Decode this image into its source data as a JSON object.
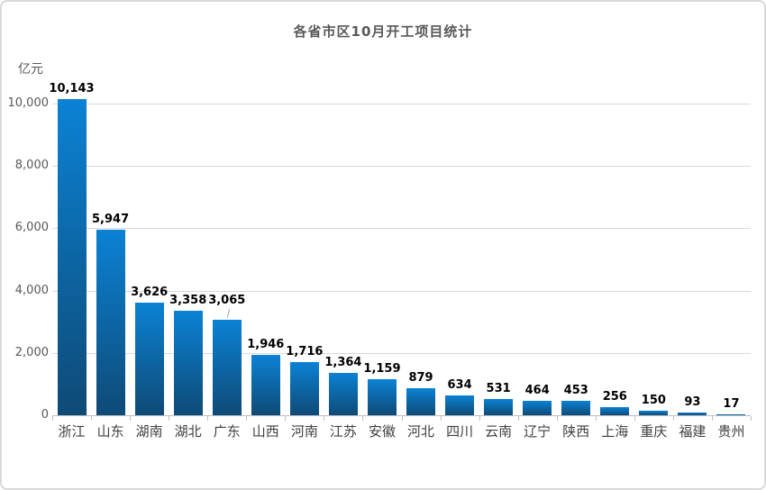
{
  "chart_data": {
    "type": "bar",
    "title": "各省市区10月开工项目统计",
    "unit_label": "亿元",
    "xlabel": "",
    "ylabel": "亿元",
    "categories": [
      "浙江",
      "山东",
      "湖南",
      "湖北",
      "广东",
      "山西",
      "河南",
      "江苏",
      "安徽",
      "河北",
      "四川",
      "云南",
      "辽宁",
      "陕西",
      "上海",
      "重庆",
      "福建",
      "贵州"
    ],
    "values": [
      10143,
      5947,
      3626,
      3358,
      3065,
      1946,
      1716,
      1364,
      1159,
      879,
      634,
      531,
      464,
      453,
      256,
      150,
      93,
      17
    ],
    "value_labels": [
      "10,143",
      "5,947",
      "3,626",
      "3,358",
      "3,065",
      "1,946",
      "1,716",
      "1,364",
      "1,159",
      "879",
      "634",
      "531",
      "464",
      "453",
      "256",
      "150",
      "93",
      "17"
    ],
    "y_ticks": [
      {
        "value": 0,
        "label": "0"
      },
      {
        "value": 2000,
        "label": "2,000"
      },
      {
        "value": 4000,
        "label": "4,000"
      },
      {
        "value": 6000,
        "label": "6,000"
      },
      {
        "value": 8000,
        "label": "8,000"
      },
      {
        "value": 10000,
        "label": "10,000"
      }
    ],
    "ylim": [
      0,
      10000
    ],
    "grid": true,
    "legend": false,
    "leader_line_category": "广东",
    "colors": {
      "bar_top": "#0b82d4",
      "bar_bottom": "#0e4a76",
      "gridline": "#d9d9d9",
      "axis": "#bfbfbf",
      "leader": "#a6a6a6",
      "title_text": "#595959",
      "axis_text": "#595959",
      "category_text": "#404040",
      "value_text": "#000000"
    }
  }
}
